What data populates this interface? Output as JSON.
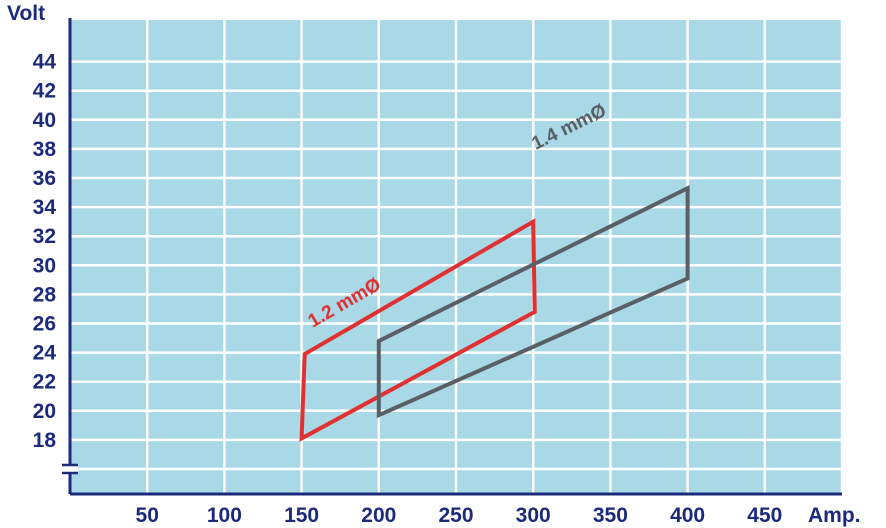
{
  "chart_data": {
    "type": "line",
    "title": "",
    "xlabel": "Amp.",
    "ylabel": "Volt",
    "x_ticks": [
      50,
      100,
      150,
      200,
      250,
      300,
      350,
      400,
      450
    ],
    "y_ticks": [
      18,
      20,
      22,
      24,
      26,
      28,
      30,
      32,
      34,
      36,
      38,
      40,
      42,
      44
    ],
    "xlim": [
      0,
      500
    ],
    "ylim": [
      14,
      46
    ],
    "y_axis_break": true,
    "grid": true,
    "series": [
      {
        "name": "1.2 mmØ",
        "color": "#e03030",
        "closed": true,
        "points": [
          [
            150,
            18.1
          ],
          [
            152,
            23.9
          ],
          [
            300,
            33.0
          ],
          [
            301,
            26.8
          ]
        ]
      },
      {
        "name": "1.4 mmØ",
        "color": "#5a5f66",
        "closed": true,
        "points": [
          [
            200,
            19.7
          ],
          [
            200,
            24.8
          ],
          [
            400,
            35.3
          ],
          [
            400,
            29.1
          ]
        ]
      }
    ]
  },
  "colors": {
    "plot_background": "#a9d8e6",
    "grid": "#ffffff",
    "axis": "#1b2a7a"
  }
}
